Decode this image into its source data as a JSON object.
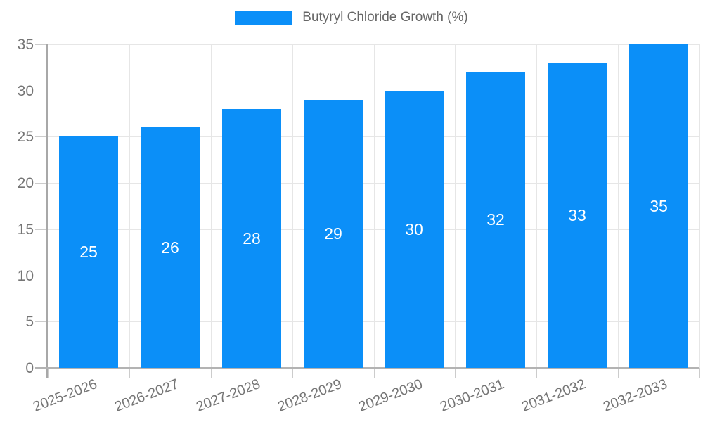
{
  "chart_data": {
    "type": "bar",
    "title": "Butyryl Chloride Growth (%)",
    "categories": [
      "2025-2026",
      "2026-2027",
      "2027-2028",
      "2028-2029",
      "2029-2030",
      "2030-2031",
      "2031-2032",
      "2032-2033"
    ],
    "series": [
      {
        "name": "Butyryl Chloride Growth (%)",
        "values": [
          25,
          26,
          28,
          29,
          30,
          32,
          33,
          35
        ]
      }
    ],
    "xlabel": "",
    "ylabel": "",
    "ylim": [
      0,
      35
    ],
    "yticks": [
      0,
      5,
      10,
      15,
      20,
      25,
      30,
      35
    ],
    "grid": "on",
    "legend_position": "top-center",
    "value_label_style": "white text centered inside bars"
  },
  "legend": {
    "label": "Butyryl Chloride Growth (%)"
  },
  "colors": {
    "bar": "#0b8ff8",
    "legend_text": "#666666",
    "axis_label": "#757575",
    "gridline": "#e6e6e6",
    "axis_line": "#a8a8a8",
    "baseline": "#b3b3b3",
    "tick": "#cccccc",
    "value_label": "#ffffff",
    "background": "#ffffff"
  }
}
